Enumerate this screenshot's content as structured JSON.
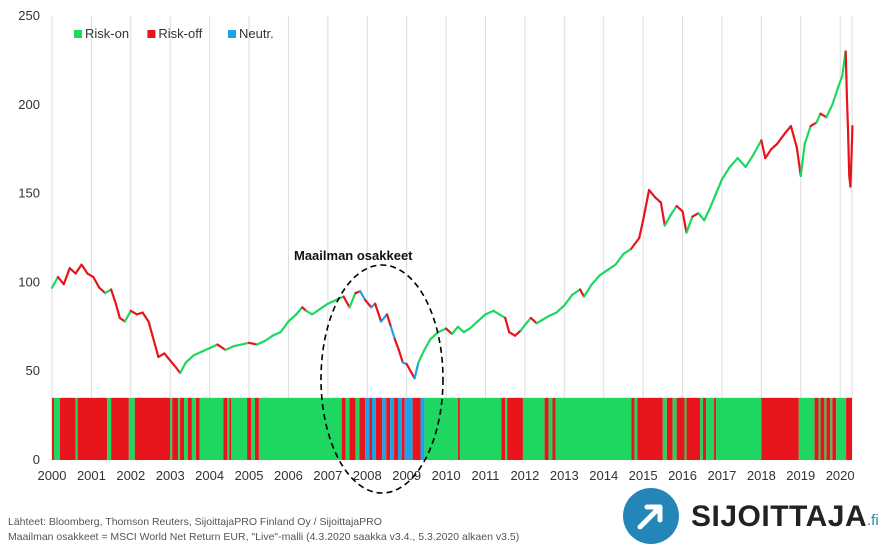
{
  "chart_data": {
    "type": "line",
    "title": "Maailman osakkeet",
    "xlabel": "",
    "ylabel": "",
    "ylim": [
      0,
      250
    ],
    "xlim": [
      2000.0,
      2020.3
    ],
    "y_ticks": [
      0,
      50,
      100,
      150,
      200,
      250
    ],
    "x_tick_labels": [
      "2000",
      "2001",
      "2002",
      "2003",
      "2004",
      "2005",
      "2006",
      "2007",
      "2008",
      "2009",
      "2010",
      "2011",
      "2012",
      "2013",
      "2014",
      "2015",
      "2016",
      "2017",
      "2018",
      "2019",
      "2020"
    ],
    "grid": "vertical",
    "legend": {
      "placement": "top-left",
      "entries": [
        {
          "label": "Risk-on",
          "color": "#1ed760"
        },
        {
          "label": "Risk-off",
          "color": "#e8141b"
        },
        {
          "label": "Neutr.",
          "color": "#1aa3e8"
        }
      ]
    },
    "annotation": "Maailman osakkeet",
    "series": [
      {
        "name": "Maailman osakkeet",
        "points": [
          [
            2000.0,
            97,
            "on"
          ],
          [
            2000.15,
            103,
            "on"
          ],
          [
            2000.3,
            99,
            "off"
          ],
          [
            2000.45,
            108,
            "off"
          ],
          [
            2000.6,
            105,
            "off"
          ],
          [
            2000.75,
            110,
            "off"
          ],
          [
            2000.9,
            105,
            "off"
          ],
          [
            2001.05,
            103,
            "off"
          ],
          [
            2001.2,
            97,
            "off"
          ],
          [
            2001.35,
            94,
            "off"
          ],
          [
            2001.5,
            96,
            "on"
          ],
          [
            2001.62,
            88,
            "off"
          ],
          [
            2001.72,
            80,
            "off"
          ],
          [
            2001.85,
            78,
            "off"
          ],
          [
            2002.0,
            84,
            "on"
          ],
          [
            2002.15,
            82,
            "off"
          ],
          [
            2002.3,
            83,
            "off"
          ],
          [
            2002.45,
            78,
            "off"
          ],
          [
            2002.55,
            70,
            "off"
          ],
          [
            2002.7,
            58,
            "off"
          ],
          [
            2002.85,
            60,
            "off"
          ],
          [
            2003.0,
            56,
            "off"
          ],
          [
            2003.15,
            52,
            "off"
          ],
          [
            2003.25,
            49,
            "off"
          ],
          [
            2003.4,
            55,
            "on"
          ],
          [
            2003.6,
            59,
            "on"
          ],
          [
            2003.8,
            61,
            "on"
          ],
          [
            2004.0,
            63,
            "on"
          ],
          [
            2004.2,
            65,
            "on"
          ],
          [
            2004.4,
            62,
            "off"
          ],
          [
            2004.6,
            64,
            "on"
          ],
          [
            2004.8,
            65,
            "on"
          ],
          [
            2005.0,
            66,
            "on"
          ],
          [
            2005.2,
            65,
            "off"
          ],
          [
            2005.4,
            67,
            "on"
          ],
          [
            2005.6,
            70,
            "on"
          ],
          [
            2005.8,
            72,
            "on"
          ],
          [
            2006.0,
            78,
            "on"
          ],
          [
            2006.2,
            82,
            "on"
          ],
          [
            2006.35,
            86,
            "on"
          ],
          [
            2006.45,
            84,
            "off"
          ],
          [
            2006.6,
            82,
            "on"
          ],
          [
            2006.8,
            85,
            "on"
          ],
          [
            2007.0,
            88,
            "on"
          ],
          [
            2007.2,
            90,
            "on"
          ],
          [
            2007.4,
            92,
            "on"
          ],
          [
            2007.55,
            86,
            "off"
          ],
          [
            2007.7,
            94,
            "on"
          ],
          [
            2007.82,
            95,
            "off"
          ],
          [
            2007.95,
            90,
            "neutral"
          ],
          [
            2008.1,
            86,
            "off"
          ],
          [
            2008.2,
            88,
            "neutral"
          ],
          [
            2008.35,
            78,
            "off"
          ],
          [
            2008.5,
            82,
            "neutral"
          ],
          [
            2008.6,
            75,
            "off"
          ],
          [
            2008.7,
            68,
            "neutral"
          ],
          [
            2008.8,
            62,
            "off"
          ],
          [
            2008.9,
            55,
            "off"
          ],
          [
            2009.0,
            54,
            "neutral"
          ],
          [
            2009.1,
            50,
            "off"
          ],
          [
            2009.2,
            46,
            "off"
          ],
          [
            2009.3,
            55,
            "neutral"
          ],
          [
            2009.45,
            62,
            "on"
          ],
          [
            2009.6,
            68,
            "on"
          ],
          [
            2009.8,
            72,
            "on"
          ],
          [
            2010.0,
            74,
            "on"
          ],
          [
            2010.15,
            71,
            "off"
          ],
          [
            2010.3,
            75,
            "on"
          ],
          [
            2010.45,
            72,
            "on"
          ],
          [
            2010.6,
            74,
            "on"
          ],
          [
            2010.8,
            78,
            "on"
          ],
          [
            2011.0,
            82,
            "on"
          ],
          [
            2011.2,
            84,
            "on"
          ],
          [
            2011.35,
            82,
            "on"
          ],
          [
            2011.5,
            80,
            "on"
          ],
          [
            2011.6,
            72,
            "off"
          ],
          [
            2011.75,
            70,
            "off"
          ],
          [
            2011.9,
            73,
            "off"
          ],
          [
            2012.0,
            76,
            "on"
          ],
          [
            2012.15,
            80,
            "on"
          ],
          [
            2012.3,
            77,
            "off"
          ],
          [
            2012.45,
            79,
            "on"
          ],
          [
            2012.6,
            81,
            "on"
          ],
          [
            2012.8,
            83,
            "on"
          ],
          [
            2013.0,
            87,
            "on"
          ],
          [
            2013.2,
            93,
            "on"
          ],
          [
            2013.4,
            96,
            "on"
          ],
          [
            2013.5,
            92,
            "off"
          ],
          [
            2013.7,
            99,
            "on"
          ],
          [
            2013.9,
            104,
            "on"
          ],
          [
            2014.1,
            107,
            "on"
          ],
          [
            2014.3,
            110,
            "on"
          ],
          [
            2014.5,
            116,
            "on"
          ],
          [
            2014.7,
            119,
            "on"
          ],
          [
            2014.9,
            125,
            "off"
          ],
          [
            2015.0,
            135,
            "off"
          ],
          [
            2015.15,
            152,
            "off"
          ],
          [
            2015.3,
            148,
            "off"
          ],
          [
            2015.45,
            145,
            "off"
          ],
          [
            2015.55,
            132,
            "off"
          ],
          [
            2015.7,
            138,
            "on"
          ],
          [
            2015.85,
            143,
            "on"
          ],
          [
            2016.0,
            140,
            "off"
          ],
          [
            2016.1,
            128,
            "off"
          ],
          [
            2016.25,
            137,
            "on"
          ],
          [
            2016.4,
            139,
            "off"
          ],
          [
            2016.55,
            135,
            "on"
          ],
          [
            2016.7,
            142,
            "on"
          ],
          [
            2016.85,
            150,
            "on"
          ],
          [
            2017.0,
            158,
            "on"
          ],
          [
            2017.2,
            165,
            "on"
          ],
          [
            2017.4,
            170,
            "on"
          ],
          [
            2017.6,
            165,
            "on"
          ],
          [
            2017.8,
            172,
            "on"
          ],
          [
            2018.0,
            180,
            "on"
          ],
          [
            2018.1,
            170,
            "off"
          ],
          [
            2018.25,
            175,
            "off"
          ],
          [
            2018.4,
            178,
            "off"
          ],
          [
            2018.6,
            184,
            "off"
          ],
          [
            2018.75,
            188,
            "off"
          ],
          [
            2018.9,
            176,
            "off"
          ],
          [
            2019.0,
            160,
            "off"
          ],
          [
            2019.1,
            178,
            "on"
          ],
          [
            2019.25,
            188,
            "on"
          ],
          [
            2019.4,
            190,
            "off"
          ],
          [
            2019.5,
            195,
            "on"
          ],
          [
            2019.65,
            193,
            "off"
          ],
          [
            2019.8,
            200,
            "on"
          ],
          [
            2019.95,
            210,
            "on"
          ],
          [
            2020.05,
            216,
            "on"
          ],
          [
            2020.1,
            224,
            "on"
          ],
          [
            2020.14,
            230,
            "on"
          ],
          [
            2020.17,
            205,
            "off"
          ],
          [
            2020.2,
            185,
            "off"
          ],
          [
            2020.23,
            160,
            "off"
          ],
          [
            2020.26,
            154,
            "off"
          ],
          [
            2020.29,
            172,
            "off"
          ],
          [
            2020.31,
            188,
            "off"
          ]
        ]
      }
    ],
    "regime_bar": {
      "height_value": 35,
      "segments": [
        [
          2000.0,
          2000.05,
          "off"
        ],
        [
          2000.05,
          2000.2,
          "on"
        ],
        [
          2000.2,
          2000.6,
          "off"
        ],
        [
          2000.6,
          2000.65,
          "on"
        ],
        [
          2000.65,
          2001.4,
          "off"
        ],
        [
          2001.4,
          2001.5,
          "on"
        ],
        [
          2001.5,
          2001.95,
          "off"
        ],
        [
          2001.95,
          2002.1,
          "on"
        ],
        [
          2002.1,
          2003.0,
          "off"
        ],
        [
          2003.0,
          2003.05,
          "on"
        ],
        [
          2003.05,
          2003.2,
          "off"
        ],
        [
          2003.2,
          2003.25,
          "on"
        ],
        [
          2003.25,
          2003.35,
          "off"
        ],
        [
          2003.35,
          2003.45,
          "on"
        ],
        [
          2003.45,
          2003.55,
          "off"
        ],
        [
          2003.55,
          2003.65,
          "on"
        ],
        [
          2003.65,
          2003.75,
          "off"
        ],
        [
          2003.75,
          2004.35,
          "on"
        ],
        [
          2004.35,
          2004.45,
          "off"
        ],
        [
          2004.45,
          2004.5,
          "on"
        ],
        [
          2004.5,
          2004.55,
          "off"
        ],
        [
          2004.55,
          2004.95,
          "on"
        ],
        [
          2004.95,
          2005.05,
          "off"
        ],
        [
          2005.05,
          2005.15,
          "on"
        ],
        [
          2005.15,
          2005.25,
          "off"
        ],
        [
          2005.25,
          2007.35,
          "on"
        ],
        [
          2007.35,
          2007.45,
          "off"
        ],
        [
          2007.45,
          2007.55,
          "on"
        ],
        [
          2007.55,
          2007.7,
          "off"
        ],
        [
          2007.7,
          2007.8,
          "on"
        ],
        [
          2007.8,
          2007.95,
          "off"
        ],
        [
          2007.95,
          2008.05,
          "neutral"
        ],
        [
          2008.05,
          2008.12,
          "off"
        ],
        [
          2008.12,
          2008.22,
          "neutral"
        ],
        [
          2008.22,
          2008.38,
          "off"
        ],
        [
          2008.38,
          2008.48,
          "neutral"
        ],
        [
          2008.48,
          2008.58,
          "off"
        ],
        [
          2008.58,
          2008.68,
          "neutral"
        ],
        [
          2008.68,
          2008.78,
          "off"
        ],
        [
          2008.78,
          2008.88,
          "neutral"
        ],
        [
          2008.88,
          2008.95,
          "off"
        ],
        [
          2008.95,
          2009.15,
          "neutral"
        ],
        [
          2009.15,
          2009.35,
          "off"
        ],
        [
          2009.35,
          2009.45,
          "neutral"
        ],
        [
          2009.45,
          2010.3,
          "on"
        ],
        [
          2010.3,
          2010.35,
          "off"
        ],
        [
          2010.35,
          2011.4,
          "on"
        ],
        [
          2011.4,
          2011.5,
          "off"
        ],
        [
          2011.5,
          2011.55,
          "on"
        ],
        [
          2011.55,
          2011.95,
          "off"
        ],
        [
          2011.95,
          2012.5,
          "on"
        ],
        [
          2012.5,
          2012.6,
          "off"
        ],
        [
          2012.6,
          2012.7,
          "on"
        ],
        [
          2012.7,
          2012.78,
          "off"
        ],
        [
          2012.78,
          2014.7,
          "on"
        ],
        [
          2014.7,
          2014.78,
          "off"
        ],
        [
          2014.78,
          2014.85,
          "on"
        ],
        [
          2014.85,
          2015.5,
          "off"
        ],
        [
          2015.5,
          2015.6,
          "on"
        ],
        [
          2015.6,
          2015.75,
          "off"
        ],
        [
          2015.75,
          2015.85,
          "on"
        ],
        [
          2015.85,
          2016.05,
          "off"
        ],
        [
          2016.05,
          2016.1,
          "on"
        ],
        [
          2016.1,
          2016.45,
          "off"
        ],
        [
          2016.45,
          2016.52,
          "on"
        ],
        [
          2016.52,
          2016.6,
          "off"
        ],
        [
          2016.6,
          2016.8,
          "on"
        ],
        [
          2016.8,
          2016.85,
          "off"
        ],
        [
          2016.85,
          2018.0,
          "on"
        ],
        [
          2018.0,
          2018.95,
          "off"
        ],
        [
          2018.95,
          2019.35,
          "on"
        ],
        [
          2019.35,
          2019.45,
          "off"
        ],
        [
          2019.45,
          2019.5,
          "on"
        ],
        [
          2019.5,
          2019.6,
          "off"
        ],
        [
          2019.6,
          2019.65,
          "on"
        ],
        [
          2019.65,
          2019.75,
          "off"
        ],
        [
          2019.75,
          2019.8,
          "on"
        ],
        [
          2019.8,
          2019.9,
          "off"
        ],
        [
          2019.9,
          2020.15,
          "on"
        ],
        [
          2020.15,
          2020.3,
          "off"
        ]
      ]
    }
  },
  "footer": {
    "line1": "Lähteet: Bloomberg, Thomson Reuters, SijoittajaPRO Finland Oy / SijoittajaPRO",
    "line2": "Maailman osakkeet = MSCI World Net Return EUR, \"Live\"-malli (4.3.2020 saakka v3.4., 5.3.2020 alkaen v3.5)"
  },
  "logo": {
    "name": "SIJOITTAJA",
    "suffix": ".fi",
    "color": "#2386b6"
  },
  "colors": {
    "on": "#1ed760",
    "off": "#e8141b",
    "neutral": "#1aa3e8",
    "grid": "#dddddd",
    "ellipse": "#000000"
  }
}
